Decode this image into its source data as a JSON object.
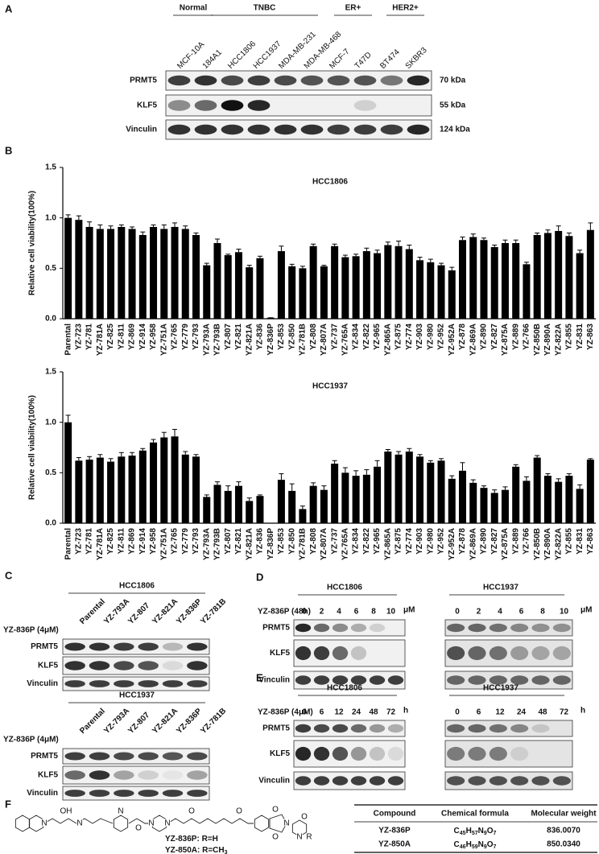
{
  "panel_labels": [
    "A",
    "B",
    "C",
    "D",
    "E",
    "F"
  ],
  "panel_a": {
    "groups": [
      "Normal",
      "TNBC",
      "ER+",
      "HER2+"
    ],
    "cell_lines": [
      "MCF-10A",
      "184A1",
      "HCC1806",
      "HCC1937",
      "MDA-MB-231",
      "MDA-MB-468",
      "MCF-7",
      "T47D",
      "BT474",
      "SKBR3"
    ],
    "proteins": [
      "PRMT5",
      "KLF5",
      "Vinculin"
    ],
    "sizes": [
      "70 kDa",
      "55 kDa",
      "124 kDa"
    ]
  },
  "chart_data": [
    {
      "type": "bar",
      "title": "HCC1806",
      "ylabel": "Relative cell viability(100%)",
      "categories": [
        "Parental",
        "YZ-723",
        "YZ-781",
        "YZ-781A",
        "YZ-825",
        "YZ-811",
        "YZ-869",
        "YZ-914",
        "YZ-958",
        "YZ-751A",
        "YZ-765",
        "YZ-779",
        "YZ-793",
        "YZ-793A",
        "YZ-793B",
        "YZ-807",
        "YZ-821",
        "YZ-821A",
        "YZ-836",
        "YZ-836P",
        "YZ-853",
        "YZ-850",
        "YZ-781B",
        "YZ-808",
        "YZ-807A",
        "YZ-737",
        "YZ-765A",
        "YZ-834",
        "YZ-822",
        "YZ-965",
        "YZ-865A",
        "YZ-875",
        "YZ-774",
        "YZ-903",
        "YZ-980",
        "YZ-952",
        "YZ-952A",
        "YZ-878",
        "YZ-869A",
        "YZ-890",
        "YZ-827",
        "YZ-875A",
        "YZ-889",
        "YZ-766",
        "YZ-850B",
        "YZ-890A",
        "YZ-822A",
        "YZ-855",
        "YZ-831",
        "YZ-863"
      ],
      "series": [
        {
          "color": "#000000",
          "values": [
            1.0,
            0.98,
            0.91,
            0.89,
            0.89,
            0.91,
            0.89,
            0.83,
            0.91,
            0.89,
            0.91,
            0.89,
            0.83,
            0.53,
            0.75,
            0.63,
            0.66,
            0.51,
            0.6,
            0.01,
            0.67,
            0.52,
            0.5,
            0.72,
            0.52,
            0.72,
            0.61,
            0.62,
            0.67,
            0.65,
            0.73,
            0.72,
            0.69,
            0.58,
            0.56,
            0.53,
            0.48,
            0.78,
            0.81,
            0.78,
            0.71,
            0.75,
            0.75,
            0.54,
            0.83,
            0.85,
            0.87,
            0.82,
            0.65,
            0.88
          ],
          "errors": [
            0.03,
            0.04,
            0.05,
            0.04,
            0.03,
            0.02,
            0.02,
            0.03,
            0.02,
            0.04,
            0.04,
            0.03,
            0.02,
            0.02,
            0.04,
            0.01,
            0.03,
            0.02,
            0.02,
            0,
            0.05,
            0.02,
            0.02,
            0.02,
            0.01,
            0.02,
            0.02,
            0.02,
            0.03,
            0.03,
            0.03,
            0.05,
            0.04,
            0.03,
            0.03,
            0.02,
            0.03,
            0.03,
            0.03,
            0.02,
            0.02,
            0.03,
            0.03,
            0.02,
            0.02,
            0.03,
            0.05,
            0.03,
            0.03,
            0.07
          ]
        }
      ],
      "ylim": [
        0,
        1.5
      ],
      "yticks": [
        {
          "value": 0,
          "label": "0.0"
        },
        0.5,
        {
          "value": 1,
          "label": "1.0"
        },
        1.5
      ],
      "highlighted": [
        "YZ-793A",
        "YZ-807",
        "YZ-821A",
        "YZ-836P",
        "YZ-781B"
      ],
      "highlight_color": "#e00000"
    },
    {
      "type": "bar",
      "title": "HCC1937",
      "ylabel": "Relative cell viability(100%)",
      "categories": [
        "Parental",
        "YZ-723",
        "YZ-781",
        "YZ-781A",
        "YZ-825",
        "YZ-811",
        "YZ-869",
        "YZ-914",
        "YZ-958",
        "YZ-751A",
        "YZ-765",
        "YZ-779",
        "YZ-793",
        "YZ-793A",
        "YZ-793B",
        "YZ-807",
        "YZ-821",
        "YZ-821A",
        "YZ-836",
        "YZ-836P",
        "YZ-853",
        "YZ-850",
        "YZ-781B",
        "YZ-808",
        "YZ-807A",
        "YZ-737",
        "YZ-765A",
        "YZ-834",
        "YZ-822",
        "YZ-965",
        "YZ-865A",
        "YZ-875",
        "YZ-774",
        "YZ-903",
        "YZ-980",
        "YZ-952",
        "YZ-952A",
        "YZ-878",
        "YZ-869A",
        "YZ-890",
        "YZ-827",
        "YZ-875A",
        "YZ-889",
        "YZ-766",
        "YZ-850B",
        "YZ-890A",
        "YZ-822A",
        "YZ-855",
        "YZ-831",
        "YZ-863"
      ],
      "series": [
        {
          "color": "#000000",
          "values": [
            1.0,
            0.62,
            0.63,
            0.65,
            0.61,
            0.66,
            0.67,
            0.72,
            0.8,
            0.85,
            0.86,
            0.68,
            0.66,
            0.26,
            0.38,
            0.32,
            0.37,
            0.22,
            0.27,
            0.0,
            0.43,
            0.32,
            0.14,
            0.37,
            0.33,
            0.59,
            0.5,
            0.47,
            0.48,
            0.56,
            0.71,
            0.68,
            0.71,
            0.66,
            0.6,
            0.62,
            0.44,
            0.52,
            0.4,
            0.35,
            0.3,
            0.33,
            0.56,
            0.42,
            0.65,
            0.47,
            0.41,
            0.47,
            0.34,
            0.63
          ],
          "errors": [
            0.07,
            0.03,
            0.03,
            0.03,
            0.03,
            0.04,
            0.03,
            0.02,
            0.03,
            0.05,
            0.07,
            0.03,
            0.02,
            0.02,
            0.03,
            0.05,
            0.04,
            0.03,
            0.01,
            0,
            0.06,
            0.07,
            0.03,
            0.03,
            0.04,
            0.03,
            0.05,
            0.05,
            0.05,
            0.06,
            0.02,
            0.03,
            0.03,
            0.02,
            0.02,
            0.02,
            0.03,
            0.08,
            0.03,
            0.02,
            0.03,
            0.03,
            0.02,
            0.04,
            0.02,
            0.02,
            0.03,
            0.02,
            0.04,
            0.01
          ]
        }
      ],
      "ylim": [
        0,
        1.5
      ],
      "yticks": [
        {
          "value": 0,
          "label": "0.0"
        },
        0.5,
        {
          "value": 1,
          "label": "1.0"
        },
        1.5
      ],
      "highlighted": [
        "YZ-793A",
        "YZ-807",
        "YZ-821A",
        "YZ-836P",
        "YZ-781B"
      ],
      "highlight_color": "#e00000"
    }
  ],
  "panel_c": {
    "treatment": "YZ-836P (4μM)",
    "lanes": [
      "Parental",
      "YZ-793A",
      "YZ-807",
      "YZ-821A",
      "YZ-836P",
      "YZ-781B"
    ],
    "highlighted": [
      "YZ-836P"
    ],
    "highlight_color": "#e00000",
    "cell_lines": [
      "HCC1806",
      "HCC1937"
    ],
    "proteins": [
      "PRMT5",
      "KLF5",
      "Vinculin"
    ]
  },
  "panel_d": {
    "treatment": "YZ-836P (48h)",
    "doses": [
      0,
      2,
      4,
      6,
      8,
      10
    ],
    "unit": "μM",
    "cell_lines": [
      "HCC1806",
      "HCC1937"
    ],
    "proteins": [
      "PRMT5",
      "KLF5",
      "Vinculin"
    ]
  },
  "panel_e": {
    "treatment": "YZ-836P (4μM)",
    "times": [
      0,
      6,
      12,
      24,
      48,
      72
    ],
    "unit": "h",
    "cell_lines": [
      "HCC1806",
      "HCC1937"
    ],
    "proteins": [
      "PRMT5",
      "KLF5",
      "Vinculin"
    ]
  },
  "panel_f": {
    "compound_labels": [
      "YZ-836P: R=H",
      "YZ-850A: R=CH3"
    ],
    "atoms": [
      "N",
      "OH",
      "N",
      "N",
      "O",
      "N",
      "O",
      "N",
      "O",
      "O",
      "N",
      "O",
      "N",
      "O",
      "R"
    ],
    "table": {
      "header": [
        "Compound",
        "Chemical formula",
        "Molecular weight"
      ],
      "rows": [
        [
          "YZ-836P",
          "C45H57N9O7",
          "836.0070"
        ],
        [
          "YZ-850A",
          "C46H59N9O7",
          "850.0340"
        ]
      ]
    }
  }
}
